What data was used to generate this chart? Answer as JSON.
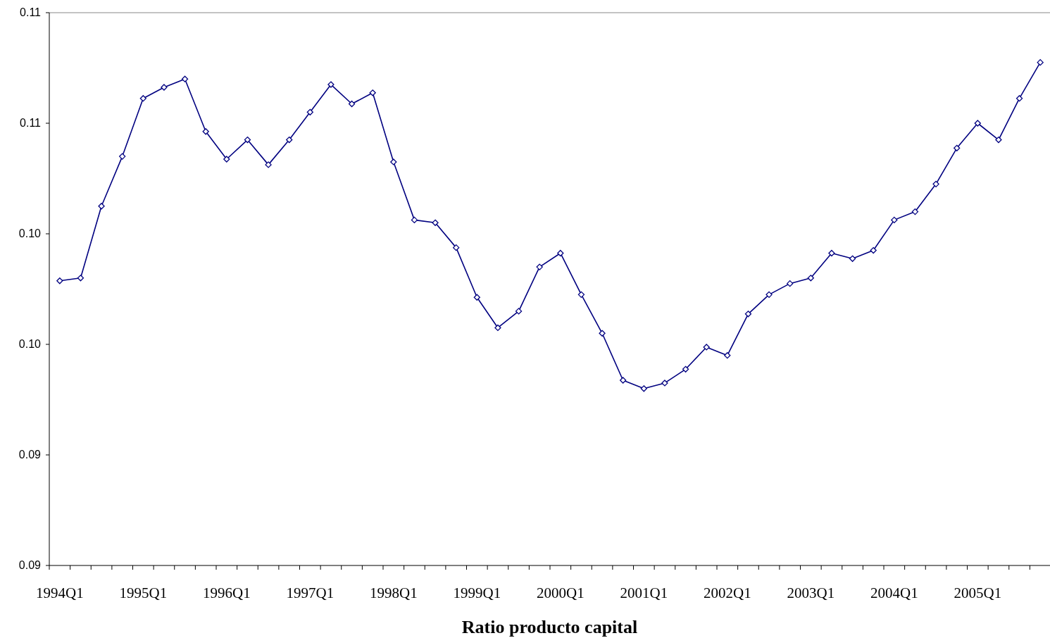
{
  "chart_data": {
    "type": "line",
    "xlabel": "Ratio producto capital",
    "categories": [
      "1994Q1",
      null,
      null,
      null,
      "1995Q1",
      null,
      null,
      null,
      "1996Q1",
      null,
      null,
      null,
      "1997Q1",
      null,
      null,
      null,
      "1998Q1",
      null,
      null,
      null,
      "1999Q1",
      null,
      null,
      null,
      "2000Q1",
      null,
      null,
      null,
      "2001Q1",
      null,
      null,
      null,
      "2002Q1",
      null,
      null,
      null,
      "2003Q1",
      null,
      null,
      null,
      "2004Q1",
      null,
      null,
      null,
      "2005Q1",
      null,
      null,
      null
    ],
    "series": [
      {
        "color": "#000080",
        "values": [
          0.1003,
          0.1004,
          0.103,
          0.1048,
          0.1069,
          0.1073,
          0.1076,
          0.1057,
          0.1047,
          0.1054,
          0.1045,
          0.1054,
          0.1064,
          0.1074,
          0.1067,
          0.1071,
          0.1046,
          0.1025,
          0.1024,
          0.1015,
          0.0997,
          0.0986,
          0.0992,
          0.1008,
          0.1013,
          0.0998,
          0.0984,
          0.0967,
          0.0964,
          0.0966,
          0.0971,
          0.0979,
          0.0976,
          0.0991,
          0.0998,
          0.1002,
          0.1004,
          0.1013,
          0.1011,
          0.1014,
          0.1025,
          0.1028,
          0.1038,
          0.1051,
          0.106,
          0.1054,
          0.1069,
          0.1082
        ]
      }
    ],
    "ylim": [
      0.09,
      0.11
    ],
    "yticks": [
      {
        "value": 0.09,
        "label": "0.09"
      },
      {
        "value": 0.094,
        "label": "0.09"
      },
      {
        "value": 0.098,
        "label": "0.10"
      },
      {
        "value": 0.102,
        "label": "0.10"
      },
      {
        "value": 0.106,
        "label": "0.11"
      },
      {
        "value": 0.11,
        "label": "0.11"
      }
    ],
    "marker": "diamond",
    "line_style": "solid",
    "grid": false
  }
}
